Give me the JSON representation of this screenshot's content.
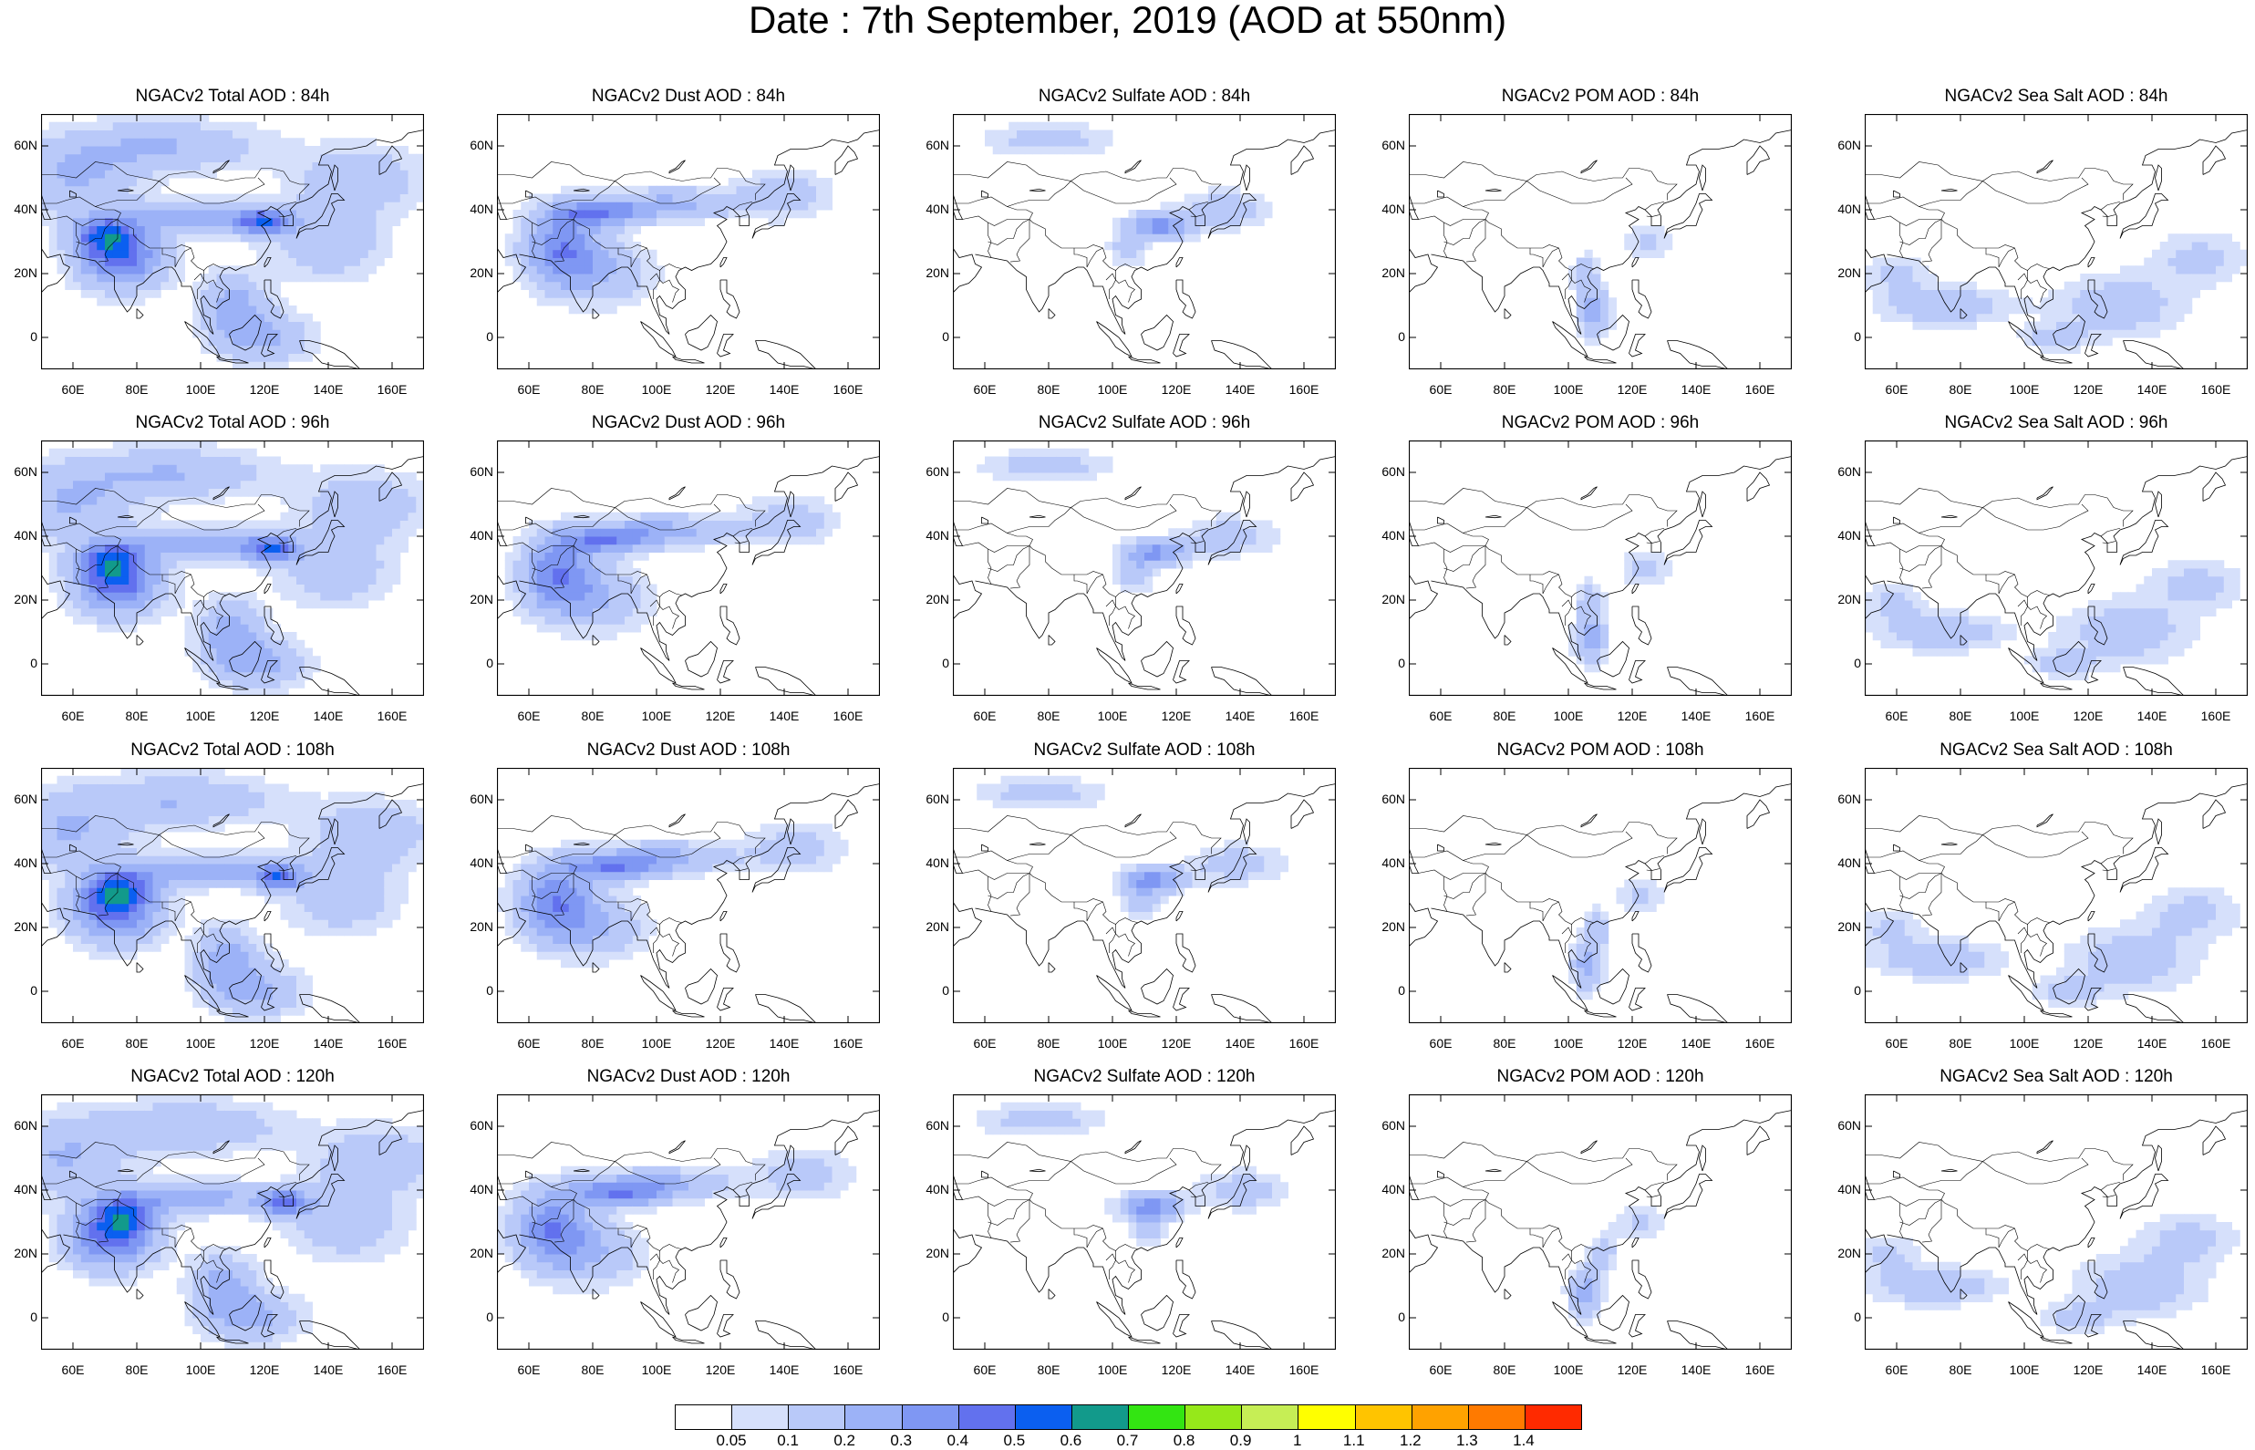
{
  "title": "Date : 7th September, 2019 (AOD at 550nm)",
  "x_ticks": [
    "60E",
    "80E",
    "100E",
    "120E",
    "140E",
    "160E"
  ],
  "x_tick_values": [
    60,
    80,
    100,
    120,
    140,
    160
  ],
  "y_ticks": [
    "60N",
    "40N",
    "20N",
    "0"
  ],
  "y_tick_values": [
    60,
    40,
    20,
    0
  ],
  "lon_range": [
    50,
    170
  ],
  "lat_range": [
    -10,
    70
  ],
  "panels": [
    [
      "NGACv2 Total AOD : 84h",
      "NGACv2 Dust AOD : 84h",
      "NGACv2 Sulfate AOD : 84h",
      "NGACv2 POM AOD : 84h",
      "NGACv2 Sea Salt AOD : 84h"
    ],
    [
      "NGACv2 Total AOD : 96h",
      "NGACv2 Dust AOD : 96h",
      "NGACv2 Sulfate AOD : 96h",
      "NGACv2 POM AOD : 96h",
      "NGACv2 Sea Salt AOD : 96h"
    ],
    [
      "NGACv2 Total AOD : 108h",
      "NGACv2 Dust AOD : 108h",
      "NGACv2 Sulfate AOD : 108h",
      "NGACv2 POM AOD : 108h",
      "NGACv2 Sea Salt AOD : 108h"
    ],
    [
      "NGACv2 Total AOD : 120h",
      "NGACv2 Dust AOD : 120h",
      "NGACv2 Sulfate AOD : 120h",
      "NGACv2 POM AOD : 120h",
      "NGACv2 Sea Salt  AOD : 120h"
    ]
  ],
  "colorbar": {
    "labels": [
      "0.05",
      "0.1",
      "0.2",
      "0.3",
      "0.4",
      "0.5",
      "0.6",
      "0.7",
      "0.8",
      "0.9",
      "1",
      "1.1",
      "1.2",
      "1.3",
      "1.4"
    ],
    "colors": [
      "#ffffff",
      "#d6e0fb",
      "#b9c9f9",
      "#9cb2f7",
      "#7f97f3",
      "#6271ee",
      "#0b5ff0",
      "#129a8b",
      "#33e512",
      "#96e81a",
      "#c6ee55",
      "#ffff00",
      "#ffc400",
      "#ffa200",
      "#ff7a00",
      "#ff2a00"
    ]
  }
}
